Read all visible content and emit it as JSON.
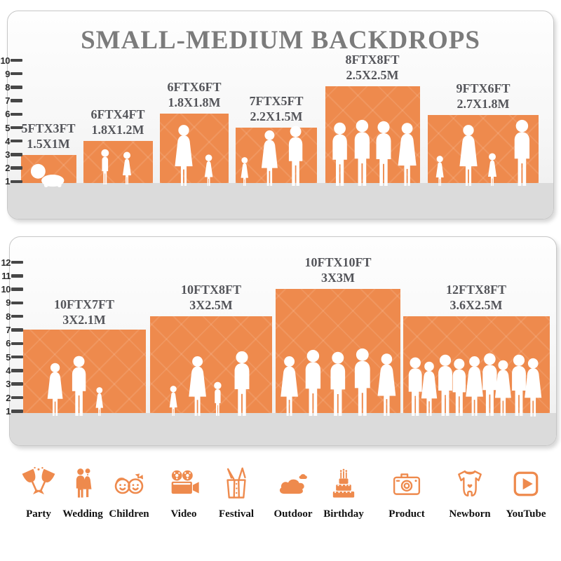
{
  "title": "SMALL-MEDIUM BACKDROPS",
  "colors": {
    "accent_orange": "#EE8A4D",
    "title_gray": "#7B7B7B",
    "label_gray": "#54555A",
    "ground_gray": "#DBDBDB"
  },
  "panel_small_medium": {
    "ruler_values": [
      "10",
      "9",
      "8",
      "7",
      "6",
      "5",
      "4",
      "3",
      "2",
      "1"
    ],
    "bars": [
      {
        "size_ft": "5FTX3FT",
        "size_m": "1.5X1M",
        "width_ft": 5,
        "height_ft": 3
      },
      {
        "size_ft": "6FTX4FT",
        "size_m": "1.8X1.2M",
        "width_ft": 6,
        "height_ft": 4
      },
      {
        "size_ft": "6FTX6FT",
        "size_m": "1.8X1.8M",
        "width_ft": 6,
        "height_ft": 6
      },
      {
        "size_ft": "7FTX5FT",
        "size_m": "2.2X1.5M",
        "width_ft": 7,
        "height_ft": 5
      },
      {
        "size_ft": "8FTX8FT",
        "size_m": "2.5X2.5M",
        "width_ft": 8,
        "height_ft": 8
      },
      {
        "size_ft": "9FTX6FT",
        "size_m": "2.7X1.8M",
        "width_ft": 9,
        "height_ft": 6
      }
    ]
  },
  "panel_large": {
    "ruler_values": [
      "12",
      "11",
      "10",
      "9",
      "8",
      "7",
      "6",
      "5",
      "4",
      "3",
      "2",
      "1"
    ],
    "bars": [
      {
        "size_ft": "10FTX7FT",
        "size_m": "3X2.1M",
        "width_ft": 10,
        "height_ft": 7
      },
      {
        "size_ft": "10FTX8FT",
        "size_m": "3X2.5M",
        "width_ft": 10,
        "height_ft": 8
      },
      {
        "size_ft": "10FTX10FT",
        "size_m": "3X3M",
        "width_ft": 10,
        "height_ft": 10
      },
      {
        "size_ft": "12FTX8FT",
        "size_m": "3.6X2.5M",
        "width_ft": 12,
        "height_ft": 8
      }
    ]
  },
  "categories": [
    {
      "label": "Party",
      "icon": "party-icon"
    },
    {
      "label": "Wedding",
      "icon": "wedding-icon"
    },
    {
      "label": "Children",
      "icon": "children-icon"
    },
    {
      "label": "Video",
      "icon": "video-icon"
    },
    {
      "label": "Festival",
      "icon": "festival-icon"
    },
    {
      "label": "Outdoor",
      "icon": "outdoor-icon"
    },
    {
      "label": "Birthday",
      "icon": "birthday-icon"
    },
    {
      "label": "Product",
      "icon": "product-icon"
    },
    {
      "label": "Newborn",
      "icon": "newborn-icon"
    },
    {
      "label": "YouTube",
      "icon": "youtube-icon"
    }
  ]
}
